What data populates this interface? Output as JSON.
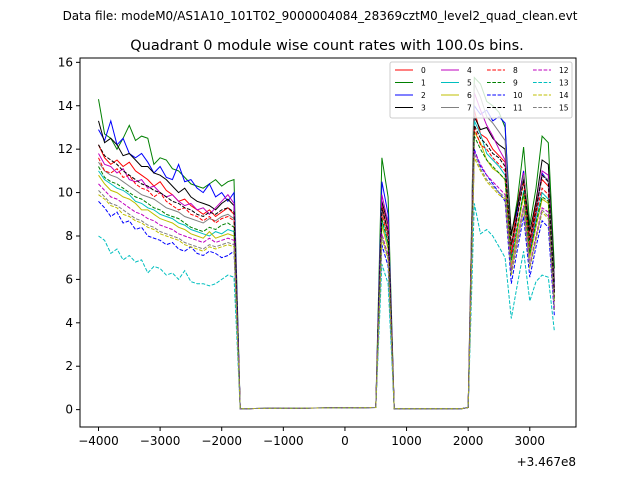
{
  "figure": {
    "suptitle": "Data file: modeM0/AS1A10_101T02_9000004084_28369cztM0_level2_quad_clean.evt",
    "offset_label": "+3.467e8"
  },
  "chart_data": {
    "type": "line",
    "title": "Quadrant 0 module wise count rates with 100.0s bins.",
    "xlabel": "",
    "ylabel": "",
    "xlim": [
      -4300,
      3750
    ],
    "ylim": [
      -0.8,
      16.2
    ],
    "xticks": [
      -4000,
      -3000,
      -2000,
      -1000,
      0,
      1000,
      2000,
      3000
    ],
    "xtick_labels": [
      "−4000",
      "−3000",
      "−2000",
      "−1000",
      "0",
      "1000",
      "2000",
      "3000"
    ],
    "yticks": [
      0,
      2,
      4,
      6,
      8,
      10,
      12,
      14,
      16
    ],
    "ytick_labels": [
      "0",
      "2",
      "4",
      "6",
      "8",
      "10",
      "12",
      "14",
      "16"
    ],
    "grid": false,
    "legend_position": "top-right",
    "legend_columns": 4,
    "x": [
      -4000,
      -3900,
      -3800,
      -3700,
      -3600,
      -3500,
      -3400,
      -3300,
      -3200,
      -3100,
      -3000,
      -2900,
      -2800,
      -2700,
      -2600,
      -2500,
      -2400,
      -2300,
      -2200,
      -2100,
      -2000,
      -1900,
      -1800,
      -1700,
      -1600,
      500,
      600,
      700,
      800,
      1900,
      2000,
      2100,
      2200,
      2300,
      2400,
      2500,
      2600,
      2700,
      2800,
      2900,
      3000,
      3100,
      3200,
      3300,
      3400
    ],
    "series": [
      {
        "name": "0",
        "color": "#ff0000",
        "dash": "solid",
        "values": [
          12.2,
          11.6,
          11.3,
          11.5,
          11.2,
          11.4,
          11.0,
          10.8,
          10.6,
          10.3,
          10.5,
          10.1,
          9.9,
          9.6,
          9.7,
          9.4,
          9.2,
          9.0,
          9.2,
          8.9,
          9.1,
          9.3,
          9.0,
          0.05,
          0.05,
          0.1,
          9.4,
          8.2,
          0.05,
          0.05,
          0.1,
          13.8,
          12.7,
          12.5,
          12.0,
          11.7,
          11.4,
          7.5,
          9.5,
          11.0,
          7.8,
          9.5,
          10.6,
          10.3,
          5.5
        ]
      },
      {
        "name": "1",
        "color": "#008000",
        "dash": "solid",
        "values": [
          14.3,
          12.7,
          12.5,
          12.0,
          12.5,
          13.1,
          12.4,
          12.6,
          12.5,
          11.3,
          11.6,
          11.5,
          11.1,
          11.0,
          10.7,
          10.4,
          10.3,
          10.2,
          10.4,
          10.6,
          10.3,
          10.5,
          10.6,
          0.05,
          0.05,
          0.1,
          11.6,
          9.8,
          0.05,
          0.05,
          0.1,
          15.3,
          15.0,
          14.2,
          14.0,
          13.7,
          13.0,
          8.0,
          9.7,
          12.1,
          8.5,
          10.2,
          12.6,
          12.3,
          6.5
        ]
      },
      {
        "name": "2",
        "color": "#0000ff",
        "dash": "solid",
        "values": [
          12.9,
          12.4,
          13.3,
          12.2,
          12.5,
          11.8,
          11.6,
          11.8,
          11.4,
          10.9,
          11.2,
          10.7,
          10.6,
          11.3,
          10.5,
          10.6,
          10.2,
          10.0,
          10.4,
          9.8,
          10.0,
          9.6,
          10.0,
          0.05,
          0.05,
          0.1,
          10.5,
          9.0,
          0.05,
          0.05,
          0.1,
          14.0,
          13.6,
          13.8,
          13.3,
          13.5,
          13.2,
          7.0,
          9.3,
          11.0,
          7.3,
          9.0,
          10.9,
          10.5,
          5.8
        ]
      },
      {
        "name": "3",
        "color": "#000000",
        "dash": "solid",
        "values": [
          13.3,
          12.3,
          12.5,
          12.2,
          11.7,
          11.8,
          11.5,
          11.2,
          11.2,
          10.9,
          10.8,
          10.6,
          10.3,
          10.0,
          10.2,
          9.8,
          9.6,
          9.5,
          9.4,
          9.2,
          9.5,
          9.7,
          9.4,
          0.05,
          0.05,
          0.1,
          9.6,
          8.5,
          0.05,
          0.05,
          0.1,
          13.5,
          12.9,
          13.0,
          12.5,
          12.2,
          12.0,
          8.1,
          9.4,
          10.8,
          8.2,
          9.6,
          11.5,
          11.3,
          5.9
        ]
      },
      {
        "name": "4",
        "color": "#bf00bf",
        "dash": "solid",
        "values": [
          11.8,
          11.3,
          11.2,
          10.9,
          11.1,
          10.6,
          10.5,
          10.6,
          10.2,
          10.3,
          10.0,
          9.8,
          9.9,
          9.6,
          9.4,
          9.5,
          9.2,
          9.3,
          9.0,
          9.3,
          9.6,
          9.9,
          9.5,
          0.05,
          0.05,
          0.1,
          9.9,
          8.6,
          0.05,
          0.05,
          0.1,
          14.6,
          13.8,
          13.1,
          12.6,
          12.0,
          11.5,
          7.0,
          9.0,
          10.9,
          7.4,
          9.2,
          11.0,
          10.8,
          5.6
        ]
      },
      {
        "name": "5",
        "color": "#00bfbf",
        "dash": "solid",
        "values": [
          11.0,
          10.6,
          10.4,
          10.2,
          10.1,
          9.9,
          9.6,
          9.5,
          9.3,
          9.2,
          9.0,
          8.9,
          8.8,
          8.6,
          8.5,
          8.3,
          8.2,
          8.1,
          8.0,
          8.2,
          8.1,
          8.3,
          8.2,
          0.05,
          0.05,
          0.1,
          8.7,
          7.6,
          0.05,
          0.05,
          0.1,
          13.3,
          12.7,
          11.8,
          11.5,
          11.2,
          10.8,
          6.8,
          8.4,
          10.1,
          7.1,
          8.7,
          10.0,
          9.7,
          5.1
        ]
      },
      {
        "name": "6",
        "color": "#bfbf00",
        "dash": "solid",
        "values": [
          10.8,
          10.4,
          10.1,
          10.0,
          9.8,
          9.7,
          9.5,
          9.2,
          9.2,
          9.0,
          8.8,
          8.7,
          8.6,
          8.4,
          8.3,
          8.1,
          8.0,
          7.9,
          8.2,
          7.9,
          8.0,
          8.1,
          8.0,
          0.05,
          0.05,
          0.1,
          8.5,
          7.4,
          0.05,
          0.05,
          0.1,
          12.8,
          12.3,
          11.5,
          11.1,
          10.9,
          10.6,
          6.6,
          8.2,
          9.9,
          7.0,
          8.4,
          9.7,
          9.5,
          5.0
        ]
      },
      {
        "name": "7",
        "color": "#808080",
        "dash": "solid",
        "values": [
          11.4,
          11.0,
          10.8,
          10.7,
          10.5,
          10.3,
          10.1,
          9.9,
          9.8,
          9.7,
          9.5,
          9.3,
          9.2,
          9.1,
          8.9,
          8.8,
          8.7,
          8.6,
          8.8,
          8.7,
          8.9,
          9.0,
          8.8,
          0.05,
          0.05,
          0.1,
          9.2,
          8.0,
          0.05,
          0.05,
          0.1,
          15.0,
          14.4,
          13.5,
          13.2,
          12.8,
          12.4,
          7.3,
          9.0,
          10.8,
          7.6,
          9.1,
          10.8,
          10.6,
          5.5
        ]
      },
      {
        "name": "8",
        "color": "#ff0000",
        "dash": "dashed",
        "values": [
          11.6,
          11.0,
          10.9,
          11.1,
          10.7,
          10.8,
          10.4,
          10.2,
          10.1,
          9.8,
          10.0,
          9.6,
          9.4,
          9.2,
          9.3,
          9.0,
          8.9,
          8.7,
          8.9,
          8.6,
          8.8,
          8.9,
          8.7,
          0.05,
          0.05,
          0.1,
          9.0,
          7.9,
          0.05,
          0.05,
          0.1,
          13.0,
          12.2,
          12.0,
          11.6,
          11.3,
          11.0,
          7.2,
          8.9,
          10.5,
          7.5,
          9.0,
          10.2,
          9.9,
          5.2
        ]
      },
      {
        "name": "9",
        "color": "#008000",
        "dash": "dashed",
        "values": [
          11.2,
          10.7,
          10.5,
          10.4,
          10.2,
          10.0,
          9.8,
          9.7,
          9.5,
          9.3,
          9.2,
          9.0,
          8.9,
          8.8,
          8.6,
          8.4,
          8.3,
          8.2,
          8.4,
          8.3,
          8.5,
          8.6,
          8.4,
          0.05,
          0.05,
          0.1,
          8.8,
          7.7,
          0.05,
          0.05,
          0.1,
          12.6,
          12.0,
          11.5,
          11.2,
          10.9,
          10.6,
          6.9,
          8.5,
          10.0,
          7.2,
          8.6,
          9.8,
          9.6,
          5.0
        ]
      },
      {
        "name": "10",
        "color": "#0000ff",
        "dash": "dashed",
        "values": [
          9.6,
          9.3,
          8.9,
          9.1,
          8.6,
          8.7,
          8.3,
          8.4,
          8.0,
          7.9,
          7.8,
          7.6,
          7.7,
          7.4,
          7.3,
          7.5,
          7.2,
          7.1,
          7.3,
          7.2,
          7.0,
          7.1,
          7.3,
          0.05,
          0.05,
          0.1,
          7.6,
          6.6,
          0.05,
          0.05,
          0.1,
          12.0,
          11.2,
          10.8,
          10.4,
          10.0,
          9.6,
          5.8,
          7.4,
          8.9,
          6.1,
          7.5,
          8.7,
          8.4,
          4.3
        ]
      },
      {
        "name": "11",
        "color": "#000000",
        "dash": "dashed",
        "values": [
          12.2,
          11.7,
          11.5,
          11.3,
          11.0,
          10.8,
          10.6,
          10.4,
          10.3,
          10.1,
          10.0,
          9.8,
          9.6,
          9.5,
          9.3,
          9.2,
          9.0,
          8.9,
          9.1,
          9.0,
          9.2,
          9.3,
          9.1,
          0.05,
          0.05,
          0.1,
          9.3,
          8.2,
          0.05,
          0.05,
          0.1,
          13.1,
          12.5,
          12.2,
          11.8,
          11.6,
          11.2,
          7.6,
          9.0,
          10.6,
          7.8,
          9.2,
          10.8,
          10.5,
          5.4
        ]
      },
      {
        "name": "12",
        "color": "#bf00bf",
        "dash": "dashed",
        "values": [
          10.4,
          10.1,
          9.8,
          9.7,
          9.5,
          9.3,
          9.1,
          9.0,
          8.8,
          8.7,
          8.5,
          8.4,
          8.3,
          8.1,
          8.0,
          7.9,
          7.8,
          7.7,
          7.9,
          7.7,
          7.8,
          7.9,
          7.8,
          0.05,
          0.05,
          0.1,
          8.1,
          7.1,
          0.05,
          0.05,
          0.1,
          11.9,
          11.3,
          10.8,
          10.5,
          10.2,
          9.9,
          6.4,
          7.9,
          9.4,
          6.7,
          8.0,
          9.3,
          9.1,
          4.7
        ]
      },
      {
        "name": "13",
        "color": "#00bfbf",
        "dash": "dashed",
        "values": [
          8.0,
          7.8,
          7.2,
          7.4,
          6.9,
          7.1,
          6.8,
          6.9,
          6.3,
          6.6,
          6.5,
          6.2,
          6.3,
          6.0,
          6.4,
          5.9,
          5.8,
          5.8,
          5.7,
          5.8,
          6.0,
          6.2,
          6.1,
          0.05,
          0.05,
          0.1,
          6.7,
          5.8,
          0.05,
          0.05,
          0.1,
          9.5,
          8.1,
          8.3,
          8.0,
          7.5,
          7.0,
          4.2,
          5.8,
          7.3,
          5.0,
          5.9,
          6.2,
          6.1,
          3.6
        ]
      },
      {
        "name": "14",
        "color": "#bfbf00",
        "dash": "dashed",
        "values": [
          9.9,
          9.7,
          9.4,
          9.3,
          9.0,
          8.9,
          8.7,
          8.6,
          8.4,
          8.3,
          8.1,
          8.0,
          7.9,
          7.8,
          7.6,
          7.5,
          7.4,
          7.3,
          7.5,
          7.4,
          7.5,
          7.6,
          7.5,
          0.05,
          0.05,
          0.1,
          7.9,
          6.9,
          0.05,
          0.05,
          0.1,
          11.6,
          11.0,
          10.5,
          10.2,
          9.9,
          9.7,
          6.2,
          7.7,
          9.2,
          6.5,
          7.8,
          9.1,
          8.8,
          4.6
        ]
      },
      {
        "name": "15",
        "color": "#808080",
        "dash": "dashed",
        "values": [
          10.1,
          9.8,
          9.5,
          9.4,
          9.2,
          9.0,
          8.8,
          8.7,
          8.5,
          8.4,
          8.2,
          8.1,
          8.0,
          7.9,
          7.7,
          7.6,
          7.5,
          7.4,
          7.6,
          7.5,
          7.6,
          7.7,
          7.6,
          0.05,
          0.05,
          0.1,
          8.0,
          7.0,
          0.05,
          0.05,
          0.1,
          11.8,
          11.1,
          10.6,
          10.3,
          10.0,
          9.8,
          6.3,
          7.8,
          9.3,
          6.6,
          7.9,
          9.2,
          8.9,
          4.6
        ]
      }
    ]
  }
}
